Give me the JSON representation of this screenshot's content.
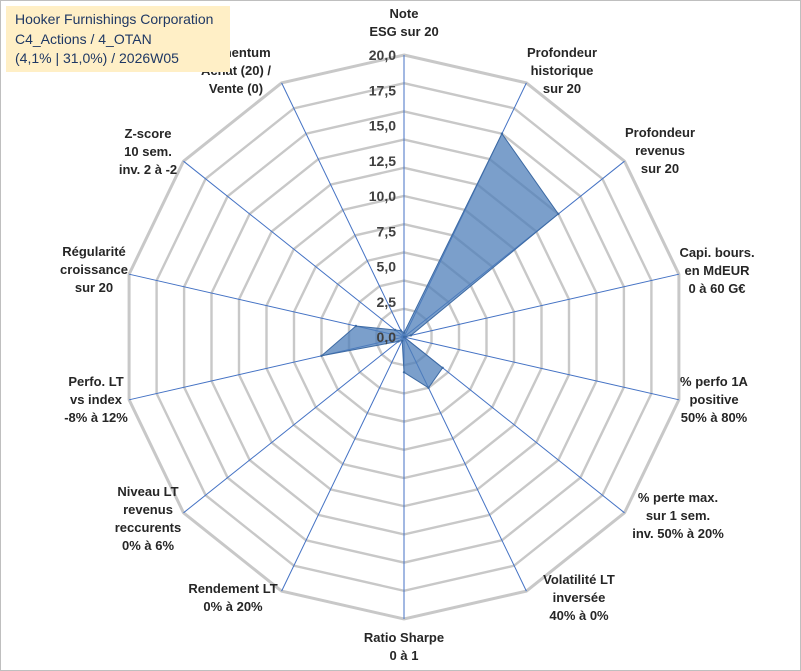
{
  "title": {
    "line1": "Hooker Furnishings Corporation",
    "line2": "C4_Actions / 4_OTAN",
    "line3": "(4,1% | 31,0%) / 2026W05"
  },
  "chart_data": {
    "type": "radar",
    "axis_range": [
      0,
      20
    ],
    "ticks": [
      "0,0",
      "2,5",
      "5,0",
      "7,5",
      "10,0",
      "12,5",
      "15,0",
      "17,5",
      "20,0"
    ],
    "tick_values": [
      0,
      2.5,
      5,
      7.5,
      10,
      12.5,
      15,
      17.5,
      20
    ],
    "grid_rings": 10,
    "categories": [
      [
        "Note",
        "ESG sur 20"
      ],
      [
        "Profondeur",
        "historique",
        "sur 20"
      ],
      [
        "Profondeur",
        "revenus",
        "sur 20"
      ],
      [
        "Capi. bours.",
        "en MdEUR",
        "0 à 60 G€"
      ],
      [
        "% perfo 1A",
        "positive",
        "50% à 80%"
      ],
      [
        "% perte max.",
        "sur 1 sem.",
        "inv. 50% à 20%"
      ],
      [
        "Volatilité LT",
        "inversée",
        "40% à 0%"
      ],
      [
        "Ratio Sharpe",
        "0 à 1"
      ],
      [
        "Rendement LT",
        "0% à 20%"
      ],
      [
        "Niveau LT",
        "revenus",
        "reccurents",
        "0% à 6%"
      ],
      [
        "Perfo. LT",
        "vs index",
        "-8% à 12%"
      ],
      [
        "Régularité",
        "croissance",
        "sur 20"
      ],
      [
        "Z-score",
        "10 sem.",
        "inv. 2 à -2"
      ],
      [
        "Momentum",
        "Achat (20) /",
        "Vente (0)"
      ]
    ],
    "series": [
      {
        "values": [
          0.3,
          16.0,
          14.0,
          0.5,
          0.0,
          3.5,
          4.0,
          2.5,
          0.3,
          0.5,
          6.0,
          3.5,
          0.8,
          0.5
        ]
      }
    ],
    "colors": {
      "fill": "#4f7fba",
      "fill_opacity": "0.75",
      "grid": "#c8c8c8",
      "spoke": "#4472c4"
    }
  }
}
